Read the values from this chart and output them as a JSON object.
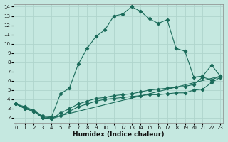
{
  "xlabel": "Humidex (Indice chaleur)",
  "bg_color": "#c5e8e0",
  "grid_color": "#afd4cc",
  "line_color": "#1a6b5a",
  "xlim": [
    -0.3,
    23.3
  ],
  "ylim": [
    1.5,
    14.3
  ],
  "xticks": [
    0,
    1,
    2,
    3,
    4,
    5,
    6,
    7,
    8,
    9,
    10,
    11,
    12,
    13,
    14,
    15,
    16,
    17,
    18,
    19,
    20,
    21,
    22,
    23
  ],
  "yticks": [
    2,
    3,
    4,
    5,
    6,
    7,
    8,
    9,
    10,
    11,
    12,
    13,
    14
  ],
  "series1_x": [
    0,
    1,
    2,
    3,
    4,
    5,
    6,
    7,
    8,
    9,
    10,
    11,
    12,
    13,
    14,
    15,
    16,
    17,
    18,
    19,
    20,
    21,
    22,
    23
  ],
  "series1_y": [
    3.5,
    3.2,
    2.8,
    2.2,
    2.1,
    4.6,
    5.2,
    7.8,
    9.5,
    10.8,
    11.5,
    13.0,
    13.2,
    14.0,
    13.5,
    12.7,
    12.2,
    12.6,
    9.5,
    9.2,
    6.4,
    6.5,
    7.7,
    6.5
  ],
  "series2_x": [
    0,
    1,
    2,
    3,
    4,
    23
  ],
  "series2_y": [
    3.5,
    3.1,
    2.8,
    2.1,
    2.0,
    6.5
  ],
  "series3_x": [
    0,
    1,
    2,
    3,
    4,
    5,
    6,
    7,
    8,
    9,
    10,
    11,
    12,
    13,
    14,
    15,
    16,
    17,
    18,
    19,
    20,
    21,
    22,
    23
  ],
  "series3_y": [
    3.5,
    3.0,
    2.7,
    2.0,
    1.9,
    2.5,
    3.0,
    3.5,
    3.8,
    4.1,
    4.2,
    4.4,
    4.5,
    4.6,
    4.8,
    5.0,
    5.1,
    5.2,
    5.3,
    5.4,
    5.6,
    6.4,
    6.1,
    6.5
  ],
  "series4_x": [
    0,
    1,
    2,
    3,
    4,
    5,
    6,
    7,
    8,
    9,
    10,
    11,
    12,
    13,
    14,
    15,
    16,
    17,
    18,
    19,
    20,
    21,
    22,
    23
  ],
  "series4_y": [
    3.5,
    3.0,
    2.7,
    2.0,
    1.9,
    2.2,
    2.7,
    3.2,
    3.5,
    3.8,
    4.0,
    4.1,
    4.2,
    4.3,
    4.4,
    4.5,
    4.5,
    4.6,
    4.7,
    4.7,
    5.0,
    5.1,
    5.8,
    6.4
  ]
}
